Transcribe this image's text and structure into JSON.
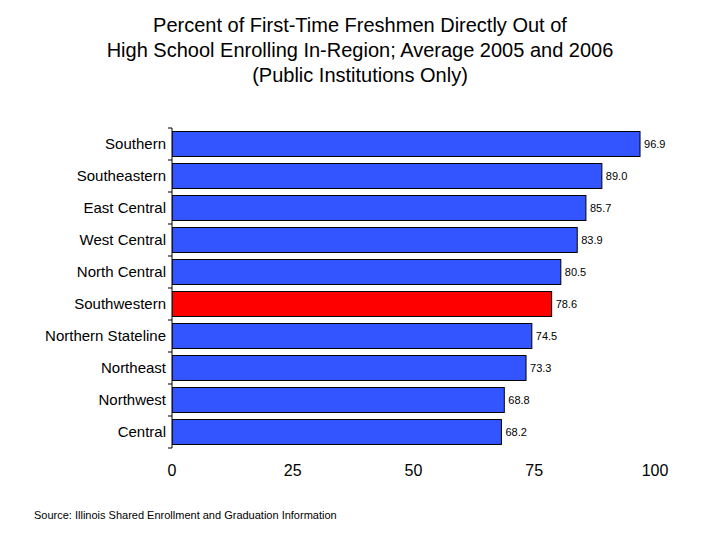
{
  "chart_data": {
    "type": "bar",
    "orientation": "horizontal",
    "title": "Percent of First-Time Freshmen Directly Out of\nHigh School Enrolling In-Region; Average 2005 and 2006\n(Public Institutions Only)",
    "categories": [
      "Southern",
      "Southeastern",
      "East Central",
      "West Central",
      "North Central",
      "Southwestern",
      "Northern Stateline",
      "Northeast",
      "Northwest",
      "Central"
    ],
    "values": [
      96.9,
      89.0,
      85.7,
      83.9,
      80.5,
      78.6,
      74.5,
      73.3,
      68.8,
      68.2
    ],
    "value_labels": [
      "96.9",
      "89.0",
      "85.7",
      "83.9",
      "80.5",
      "78.6",
      "74.5",
      "73.3",
      "68.8",
      "68.2"
    ],
    "colors": [
      "#3355ff",
      "#3355ff",
      "#3355ff",
      "#3355ff",
      "#3355ff",
      "#ff0000",
      "#3355ff",
      "#3355ff",
      "#3355ff",
      "#3355ff"
    ],
    "data_labels": true,
    "grid": false,
    "xlim": [
      0,
      100
    ],
    "xticks": [
      0,
      25,
      50,
      75,
      100
    ],
    "annotations": [
      "Source: Illinois Shared Enrollment and Graduation Information"
    ]
  }
}
